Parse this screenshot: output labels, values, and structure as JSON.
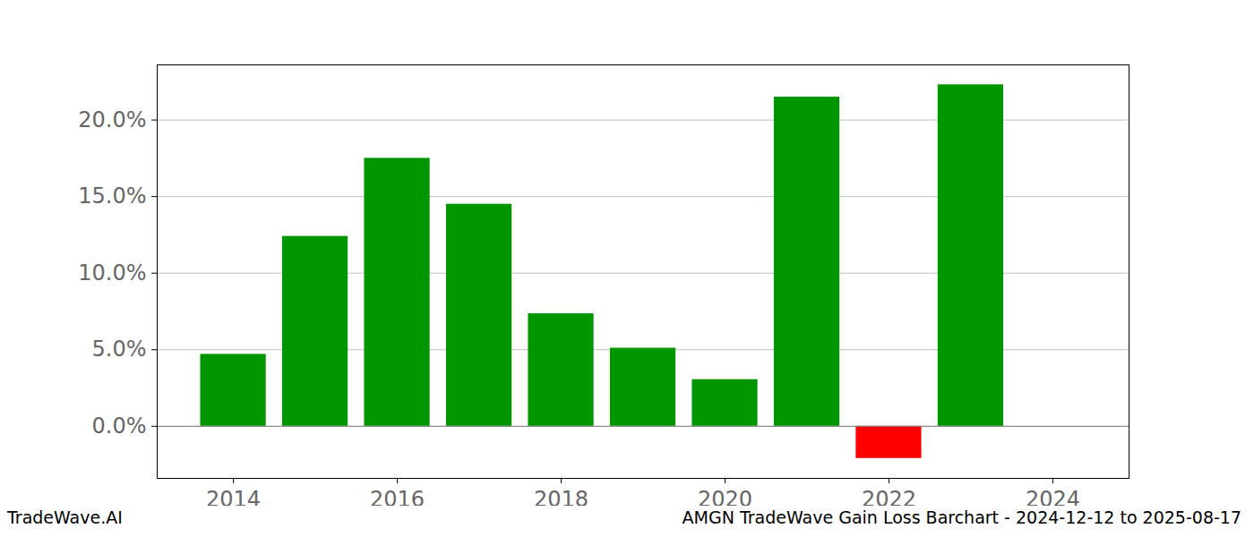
{
  "chart_data": {
    "type": "bar",
    "title": "AMGN TradeWave Gain Loss Barchart - 2024-12-12 to 2025-08-17",
    "annotations": [
      "TradeWave.AI"
    ],
    "x": [
      2014,
      2015,
      2016,
      2017,
      2018,
      2019,
      2020,
      2021,
      2022,
      2023
    ],
    "values": [
      4.7,
      12.4,
      17.5,
      14.5,
      7.35,
      5.1,
      3.05,
      21.5,
      -2.1,
      22.3
    ],
    "colors": [
      "#009600",
      "#009600",
      "#009600",
      "#009600",
      "#009600",
      "#009600",
      "#009600",
      "#009600",
      "#ff0000",
      "#009600"
    ],
    "xlim": [
      2013.07,
      2024.93
    ],
    "xticks": [
      2014,
      2016,
      2018,
      2020,
      2022,
      2024
    ],
    "ylim": [
      -3.4,
      23.6
    ],
    "yticks": [
      {
        "value": 0,
        "label": "0.0%"
      },
      {
        "value": 5,
        "label": "5.0%"
      },
      {
        "value": 10,
        "label": "10.0%"
      },
      {
        "value": 15,
        "label": "15.0%"
      },
      {
        "value": 20,
        "label": "20.0%"
      }
    ],
    "grid": true
  }
}
